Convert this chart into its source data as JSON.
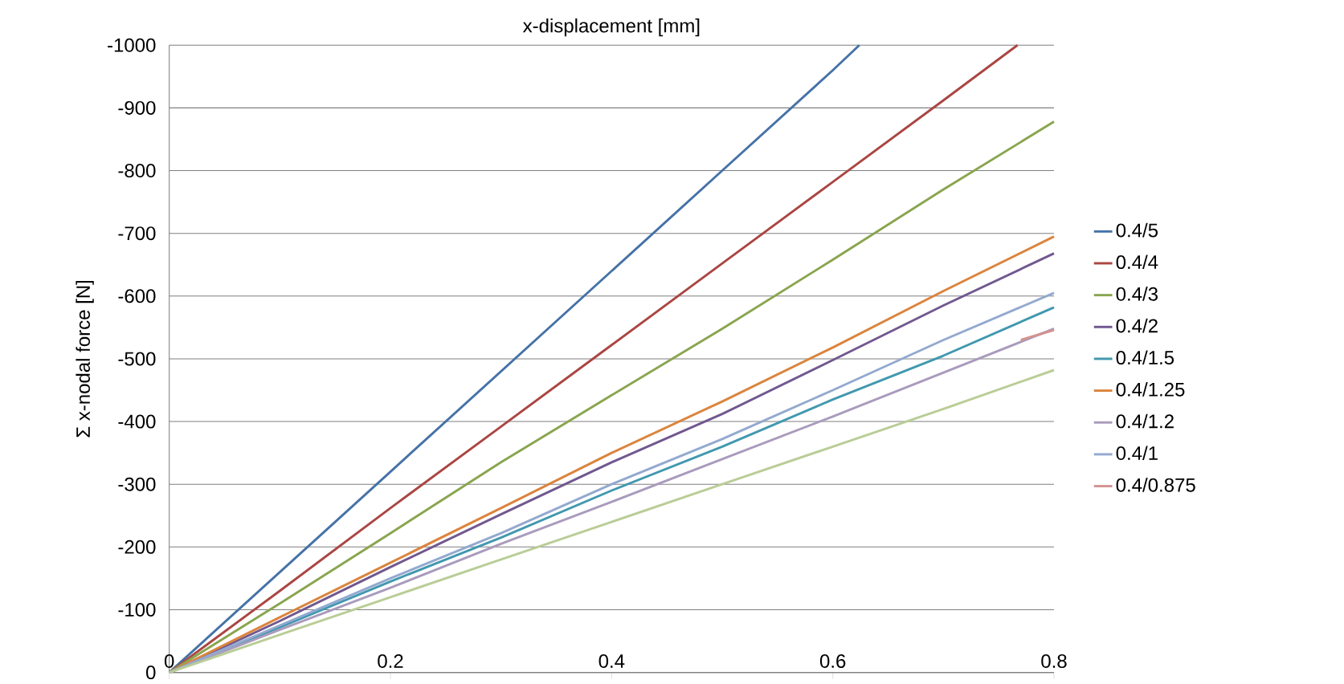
{
  "chart_data": {
    "type": "line",
    "xlabel": "x-displacement [mm]",
    "ylabel": "Σ x-nodal force  [N]",
    "x": [
      0,
      0.1,
      0.2,
      0.3,
      0.4,
      0.5,
      0.6,
      0.7,
      0.8
    ],
    "xlim": [
      0,
      0.8
    ],
    "xticks": [
      0,
      0.2,
      0.4,
      0.6,
      0.8
    ],
    "ylim": [
      0,
      -1000
    ],
    "yticks": [
      0,
      -100,
      -200,
      -300,
      -400,
      -500,
      -600,
      -700,
      -800,
      -900,
      -1000
    ],
    "grid": "y",
    "legend": "right",
    "marker": "none",
    "line_style": "solid",
    "series": [
      {
        "name": "0.4/5",
        "color": "#4572a7",
        "x": [
          0,
          0.1,
          0.2,
          0.3,
          0.4,
          0.5,
          0.6,
          0.624
        ],
        "values": [
          0,
          -160,
          -320,
          -480,
          -640,
          -800,
          -960,
          -1000
        ]
      },
      {
        "name": "0.4/4",
        "color": "#aa4643",
        "x": [
          0,
          0.1,
          0.2,
          0.3,
          0.4,
          0.5,
          0.6,
          0.7,
          0.767
        ],
        "values": [
          0,
          -130,
          -262,
          -392,
          -522,
          -652,
          -782,
          -912,
          -1000
        ]
      },
      {
        "name": "0.4/3",
        "color": "#89a54e",
        "values": [
          0,
          -110,
          -222,
          -335,
          -442,
          -548,
          -658,
          -770,
          -878
        ]
      },
      {
        "name": "0.4/2",
        "color": "#71588f",
        "values": [
          0,
          -82,
          -168,
          -252,
          -335,
          -412,
          -498,
          -585,
          -668
        ]
      },
      {
        "name": "0.4/1.5",
        "color": "#4198af",
        "values": [
          0,
          -72,
          -145,
          -215,
          -290,
          -360,
          -435,
          -505,
          -582
        ]
      },
      {
        "name": "0.4/1.25",
        "color": "#db843d",
        "values": [
          0,
          -88,
          -175,
          -262,
          -350,
          -432,
          -518,
          -608,
          -695
        ]
      },
      {
        "name": "0.4/1.2",
        "color": "#a99bbd",
        "values": [
          0,
          -68,
          -135,
          -205,
          -272,
          -340,
          -408,
          -478,
          -548
        ]
      },
      {
        "name": "0.4/1",
        "color": "#93a9cf",
        "values": [
          0,
          -75,
          -150,
          -222,
          -300,
          -372,
          -450,
          -530,
          -605
        ]
      },
      {
        "name": "0.4/0.875",
        "color": "#d19392",
        "x": [
          0.77,
          0.8
        ],
        "values": [
          -530,
          -546
        ]
      },
      {
        "color": "#b9cd96",
        "values": [
          0,
          -60,
          -120,
          -180,
          -240,
          -300,
          -360,
          -420,
          -482
        ]
      }
    ]
  }
}
